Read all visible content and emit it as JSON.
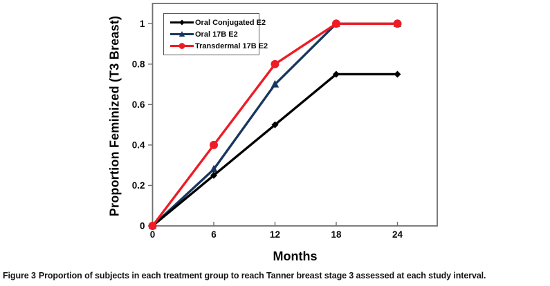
{
  "figure": {
    "caption_prefix": "Figure 3",
    "caption_text": "Proportion of subjects in each treatment group to reach Tanner breast stage 3 assessed at each study interval."
  },
  "chart_data": {
    "type": "line",
    "title": "",
    "xlabel": "Months",
    "ylabel": "Proportion Feminized (T3 Breast)",
    "x": [
      0,
      6,
      12,
      18,
      24
    ],
    "x_ticks": [
      "0",
      "6",
      "12",
      "18",
      "24"
    ],
    "y_ticks": [
      "0",
      "0.2",
      "0.4",
      "0.6",
      "0.8",
      "1"
    ],
    "y_tick_values": [
      0,
      0.2,
      0.4,
      0.6,
      0.8,
      1
    ],
    "xlim": [
      0,
      27.9
    ],
    "ylim": [
      0,
      1.1
    ],
    "grid": false,
    "legend_position": "top-left-inside",
    "axis_color": "#6f6f6f",
    "series": [
      {
        "name": "Oral Conjugated E2",
        "color": "#000000",
        "marker": "diamond",
        "values": [
          0,
          0.25,
          0.5,
          0.75,
          0.75
        ]
      },
      {
        "name": "Oral 17B E2",
        "color": "#17375e",
        "marker": "triangle",
        "values": [
          0,
          0.28,
          0.7,
          1.0,
          1.0
        ]
      },
      {
        "name": "Transdermal 17B E2",
        "color": "#ee1c25",
        "marker": "circle",
        "values": [
          0,
          0.4,
          0.8,
          1.0,
          1.0
        ]
      }
    ]
  }
}
